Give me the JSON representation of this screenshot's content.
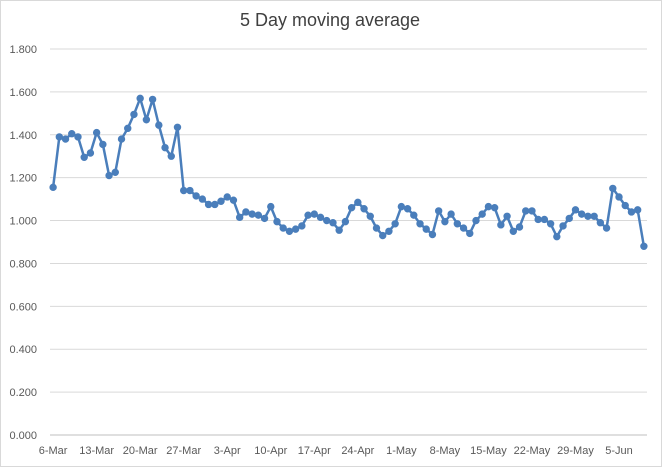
{
  "chart_data": {
    "type": "line",
    "title": "5 Day moving average",
    "xlabel": "",
    "ylabel": "",
    "ylim": [
      0,
      1.8
    ],
    "yticks": [
      "0.000",
      "0.200",
      "0.400",
      "0.600",
      "0.800",
      "1.000",
      "1.200",
      "1.400",
      "1.600",
      "1.800"
    ],
    "xtick_labels": [
      "6-Mar",
      "13-Mar",
      "20-Mar",
      "27-Mar",
      "3-Apr",
      "10-Apr",
      "17-Apr",
      "24-Apr",
      "1-May",
      "8-May",
      "15-May",
      "22-May",
      "29-May",
      "5-Jun"
    ],
    "grid": "horizontal",
    "legend": "none",
    "line_color": "#4a7ebb",
    "series": [
      {
        "name": "",
        "values": [
          1.155,
          1.39,
          1.38,
          1.405,
          1.39,
          1.295,
          1.315,
          1.41,
          1.355,
          1.21,
          1.225,
          1.38,
          1.43,
          1.495,
          1.57,
          1.47,
          1.565,
          1.445,
          1.34,
          1.3,
          1.435,
          1.14,
          1.14,
          1.115,
          1.1,
          1.075,
          1.075,
          1.09,
          1.11,
          1.095,
          1.015,
          1.04,
          1.03,
          1.025,
          1.01,
          1.065,
          0.995,
          0.965,
          0.95,
          0.96,
          0.975,
          1.025,
          1.03,
          1.015,
          1.0,
          0.99,
          0.955,
          0.995,
          1.06,
          1.085,
          1.055,
          1.02,
          0.965,
          0.93,
          0.95,
          0.985,
          1.065,
          1.055,
          1.025,
          0.985,
          0.96,
          0.935,
          1.045,
          0.995,
          1.03,
          0.985,
          0.965,
          0.94,
          1.0,
          1.03,
          1.065,
          1.06,
          0.98,
          1.02,
          0.95,
          0.97,
          1.045,
          1.045,
          1.005,
          1.005,
          0.985,
          0.925,
          0.975,
          1.01,
          1.05,
          1.03,
          1.02,
          1.02,
          0.99,
          0.965,
          1.15,
          1.11,
          1.07,
          1.04,
          1.05,
          0.88
        ]
      }
    ]
  }
}
